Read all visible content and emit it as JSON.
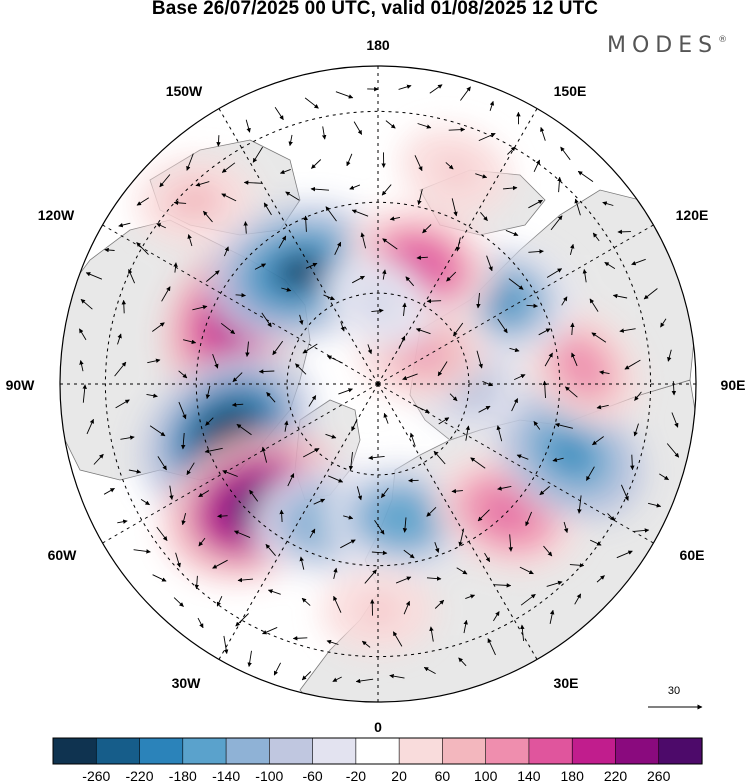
{
  "title": "Base 26/07/2025 00 UTC, valid 01/08/2025 12 UTC",
  "brand": {
    "name": "MODES",
    "mark": "®"
  },
  "projection": "north-polar-stereographic",
  "longitude_labels": {
    "top": "180",
    "upper_left": "150W",
    "upper_right": "150E",
    "mid_upper_left": "120W",
    "mid_upper_right": "120E",
    "left": "90W",
    "right": "90E",
    "mid_lower_left": "60W",
    "mid_lower_right": "60E",
    "lower_left": "30W",
    "lower_right": "30E",
    "bottom": "0"
  },
  "vector_scale": {
    "value": "30"
  },
  "colorbar": {
    "ticks": [
      "-260",
      "-220",
      "-180",
      "-140",
      "-100",
      "-60",
      "-20",
      "20",
      "60",
      "100",
      "140",
      "180",
      "220",
      "260"
    ],
    "colors": [
      "#0f3350",
      "#165d8a",
      "#2b83ba",
      "#5aa2cc",
      "#8fb2d6",
      "#c0c7e0",
      "#e3e3f0",
      "#ffffff",
      "#f9dcdc",
      "#f3b7be",
      "#ef8eae",
      "#e0559d",
      "#c11d8d",
      "#8a0a7e",
      "#4d0a6a"
    ]
  },
  "anomalies": [
    {
      "lon": -115,
      "lat": 55,
      "value": 200
    },
    {
      "lon": -145,
      "lat": 60,
      "value": -240
    },
    {
      "lon": -72,
      "lat": 55,
      "value": -250
    },
    {
      "lon": -45,
      "lat": 52,
      "value": 250
    },
    {
      "lon": -20,
      "lat": 58,
      "value": -150
    },
    {
      "lon": 10,
      "lat": 60,
      "value": -160
    },
    {
      "lon": 45,
      "lat": 50,
      "value": 150
    },
    {
      "lon": 70,
      "lat": 45,
      "value": -180
    },
    {
      "lon": 95,
      "lat": 45,
      "value": 110
    },
    {
      "lon": 125,
      "lat": 58,
      "value": -170
    },
    {
      "lon": 160,
      "lat": 62,
      "value": 160
    },
    {
      "lon": 100,
      "lat": 72,
      "value": -130
    },
    {
      "lon": 125,
      "lat": 78,
      "value": 100
    },
    {
      "lon": 160,
      "lat": 40,
      "value": 60
    },
    {
      "lon": -135,
      "lat": 33,
      "value": 70
    },
    {
      "lon": 0,
      "lat": 40,
      "value": 60
    },
    {
      "lon": 180,
      "lat": 72,
      "value": -60
    }
  ]
}
